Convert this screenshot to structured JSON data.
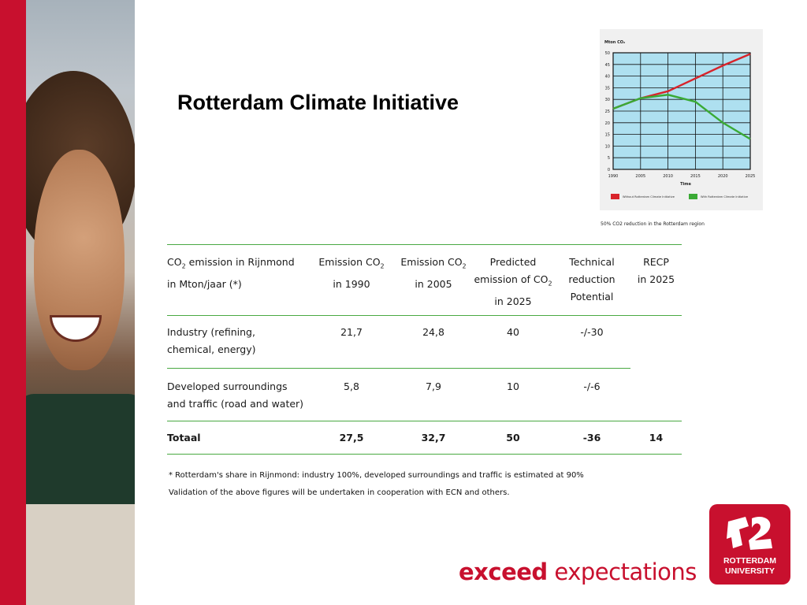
{
  "slide": {
    "title": "Rotterdam Climate Initiative",
    "slogan_bold": "exceed",
    "slogan_rest": "expectations",
    "logo_line1": "ROTTERDAM",
    "logo_line2": "UNIVERSITY"
  },
  "colors": {
    "brand_red": "#c8102e",
    "rule_green": "#49a942",
    "chart_bg": "#aee0f0"
  },
  "chart_data": {
    "type": "line",
    "ylabel": "Mton CO₂",
    "xlabel": "Time",
    "x": [
      1990,
      2005,
      2010,
      2015,
      2020,
      2025
    ],
    "ylim": [
      0,
      50
    ],
    "yticks": [
      0,
      5,
      10,
      15,
      20,
      25,
      30,
      35,
      40,
      45,
      50
    ],
    "series": [
      {
        "name": "Without Rotterdam Climate Initiative",
        "color": "#d8232a",
        "values": [
          26,
          30.5,
          33.5,
          39,
          44.5,
          49.5
        ]
      },
      {
        "name": "With Rotterdam Climate Initiative",
        "color": "#3aaa35",
        "values": [
          26,
          30.5,
          32,
          29,
          20,
          13
        ]
      }
    ],
    "caption": "50% CO2 reduction in the Rotterdam region"
  },
  "table": {
    "headers": [
      "CO₂ emission in Rijnmond\nin Mton/jaar (*)",
      "Emission CO₂\nin 1990",
      "Emission CO₂\nin 2005",
      "Predicted\nemission of CO₂\nin 2025",
      "Technical\nreduction\nPotential",
      "RECP\nin 2025"
    ],
    "rows": [
      [
        "Industry (refining,\nchemical, energy)",
        "21,7",
        "24,8",
        "40",
        "-/-30",
        ""
      ],
      [
        "Developed surroundings\nand traffic (road and water)",
        "5,8",
        "7,9",
        "10",
        "-/-6",
        ""
      ],
      [
        "Totaal",
        "27,5",
        "32,7",
        "50",
        "-36",
        "14"
      ]
    ]
  },
  "footnotes": [
    "* Rotterdam's share in Rijnmond: industry 100%, developed surroundings and traffic is estimated at 90%",
    "Validation of the above figures will be undertaken in cooperation with ECN and others."
  ]
}
